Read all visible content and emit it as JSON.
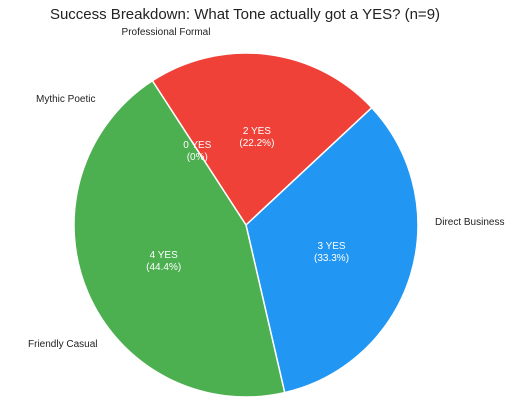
{
  "chart_data": {
    "type": "pie",
    "title": "Success Breakdown: What Tone actually got a YES? (n=9)",
    "slices": [
      {
        "label": "Professional Formal",
        "value": 2,
        "percent": 22.2,
        "line1": "2 YES",
        "line2": "(22.2%)",
        "color": "#ef4137"
      },
      {
        "label": "Direct Business",
        "value": 3,
        "percent": 33.3,
        "line1": "3 YES",
        "line2": "(33.3%)",
        "color": "#2196f3"
      },
      {
        "label": "Friendly Casual",
        "value": 4,
        "percent": 44.4,
        "line1": "4 YES",
        "line2": "(44.4%)",
        "color": "#4caf50"
      },
      {
        "label": "Mythic Poetic",
        "value": 0,
        "percent": 0,
        "line1": "0 YES",
        "line2": "(0%)",
        "color": "#ffc107"
      }
    ],
    "total": 9
  }
}
